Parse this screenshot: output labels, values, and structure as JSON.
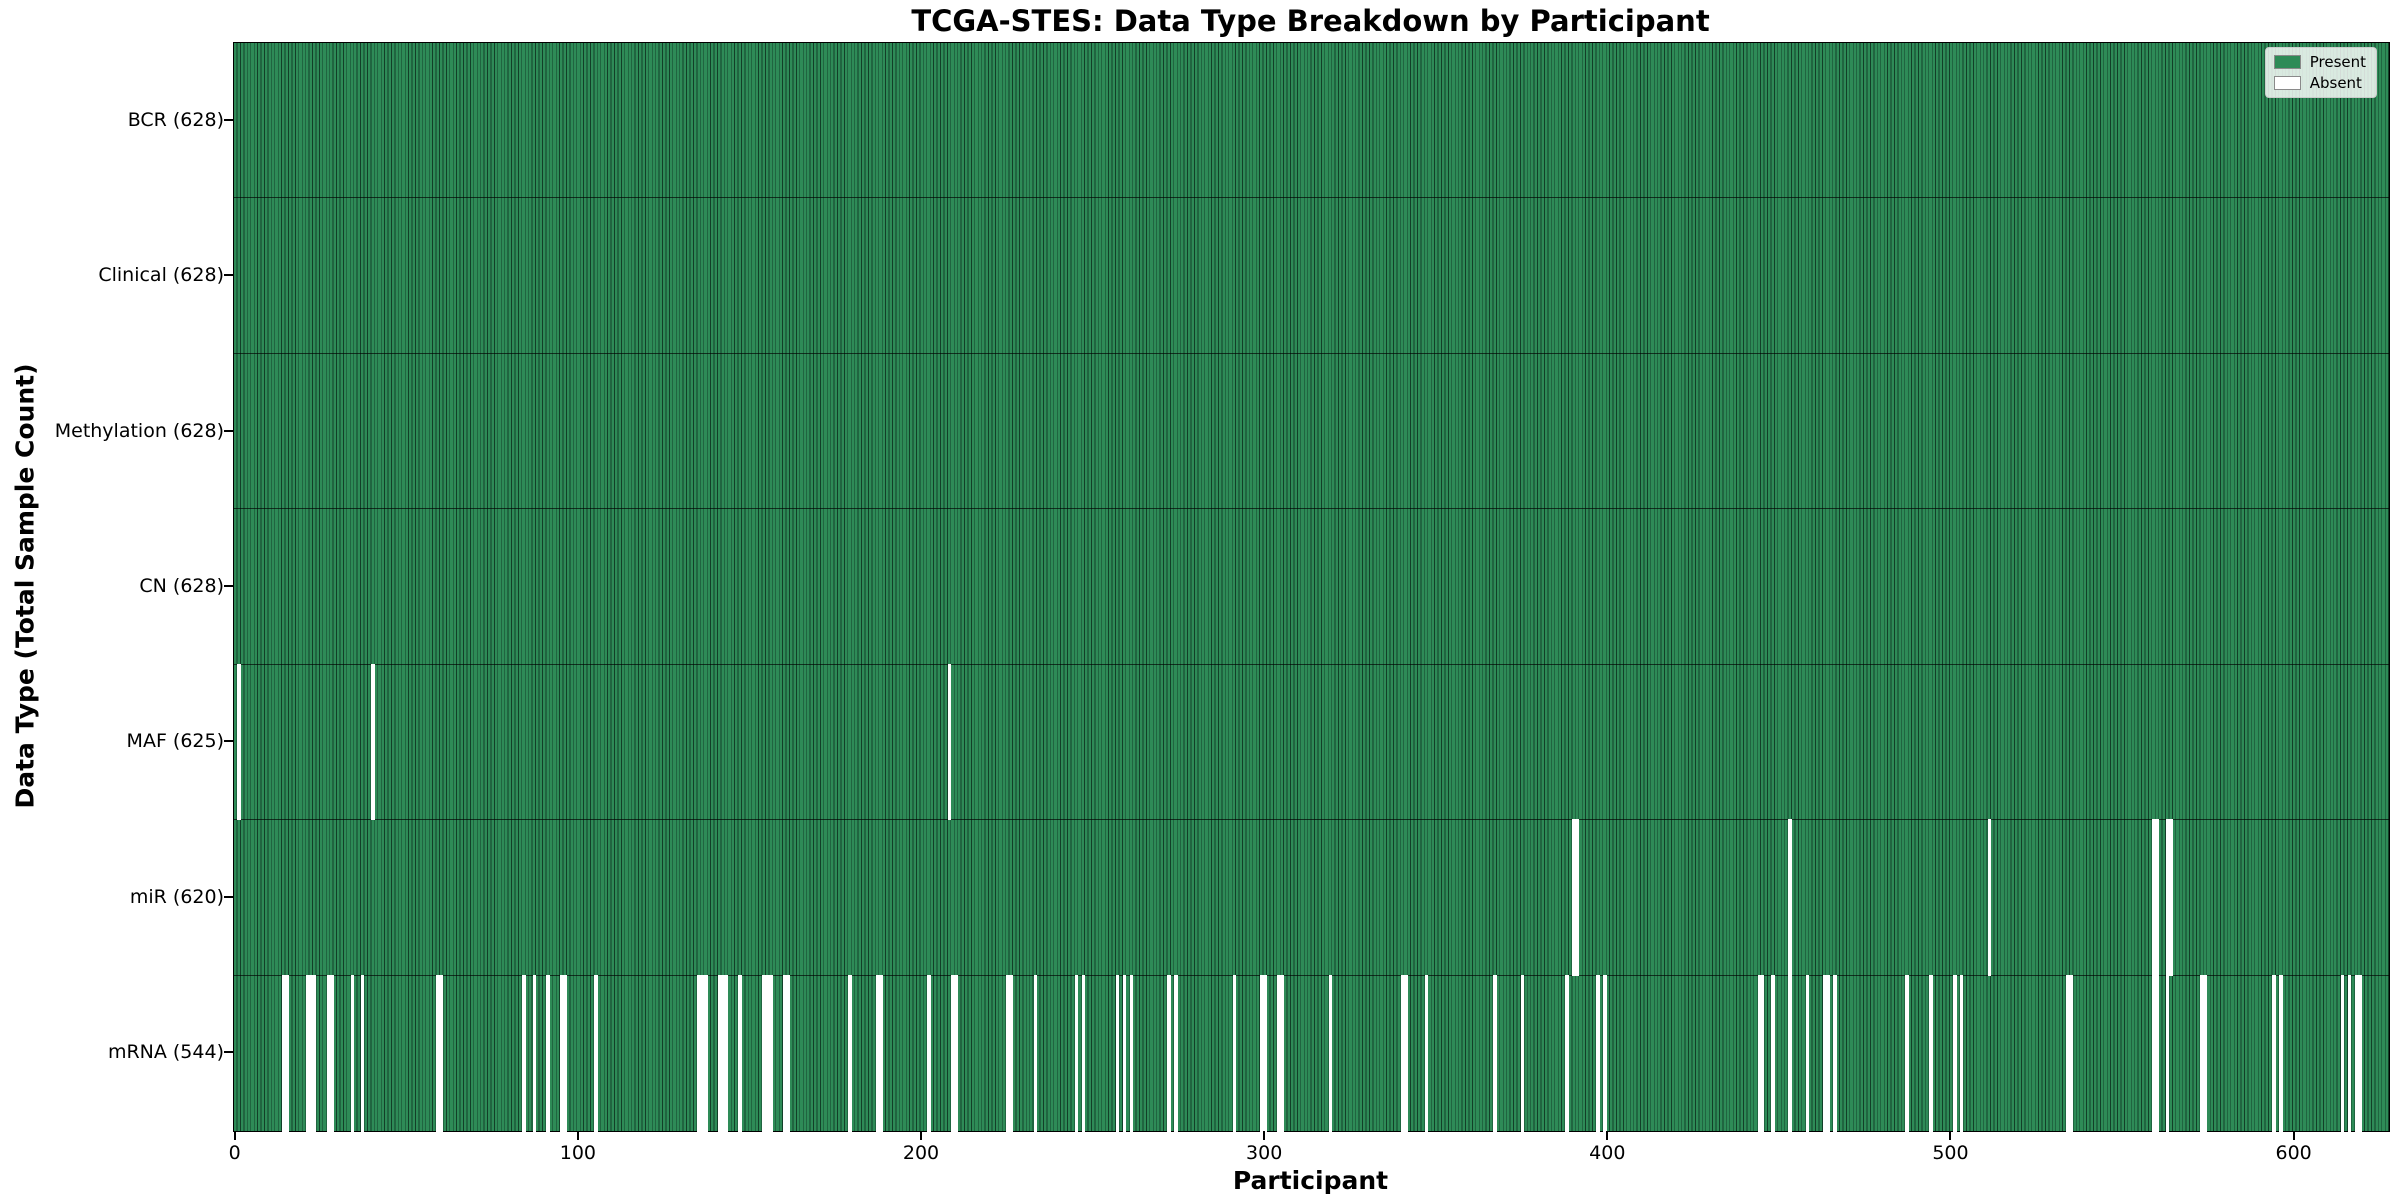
{
  "figure": {
    "title": "TCGA-STES: Data Type Breakdown by Participant",
    "xlabel": "Participant",
    "ylabel": "Data Type (Total Sample Count)"
  },
  "legend": {
    "items": [
      {
        "label": "Present",
        "color": "#2e8b57"
      },
      {
        "label": "Absent",
        "color": "#ffffff"
      }
    ]
  },
  "chart_data": {
    "type": "heatmap",
    "title": "TCGA-STES: Data Type Breakdown by Participant",
    "xlabel": "Participant",
    "ylabel": "Data Type (Total Sample Count)",
    "x_range": [
      0,
      628
    ],
    "x_ticks": [
      0,
      100,
      200,
      300,
      400,
      500,
      600
    ],
    "total_participants": 628,
    "grid": false,
    "legend_position": "upper right",
    "colors": {
      "present_fill": "#2e8b57",
      "present_edge": "#123f28",
      "absent_fill": "#ffffff"
    },
    "rows": [
      {
        "label": "BCR (628)",
        "data_type": "BCR",
        "present_count": 628,
        "absent_count": 0,
        "absent_participants": []
      },
      {
        "label": "Clinical (628)",
        "data_type": "Clinical",
        "present_count": 628,
        "absent_count": 0,
        "absent_participants": []
      },
      {
        "label": "Methylation (628)",
        "data_type": "Methylation",
        "present_count": 628,
        "absent_count": 0,
        "absent_participants": []
      },
      {
        "label": "CN (628)",
        "data_type": "CN",
        "present_count": 628,
        "absent_count": 0,
        "absent_participants": []
      },
      {
        "label": "MAF (625)",
        "data_type": "MAF",
        "present_count": 625,
        "absent_count": 3,
        "absent_participants": [
          1,
          40,
          208
        ]
      },
      {
        "label": "miR (620)",
        "data_type": "miR",
        "present_count": 620,
        "absent_count": 8,
        "absent_participants": [
          390,
          391,
          453,
          511,
          559,
          560,
          563,
          564
        ]
      },
      {
        "label": "mRNA (544)",
        "data_type": "mRNA",
        "present_count": 544,
        "absent_count": 84,
        "absent_participants": [
          14,
          15,
          21,
          22,
          23,
          27,
          28,
          34,
          37,
          59,
          60,
          84,
          87,
          91,
          95,
          96,
          105,
          135,
          136,
          137,
          141,
          142,
          143,
          147,
          154,
          155,
          156,
          160,
          161,
          179,
          187,
          188,
          202,
          209,
          210,
          225,
          226,
          233,
          245,
          247,
          257,
          259,
          261,
          272,
          274,
          291,
          299,
          300,
          304,
          305,
          319,
          340,
          341,
          347,
          367,
          375,
          388,
          397,
          399,
          444,
          445,
          448,
          453,
          458,
          463,
          464,
          466,
          487,
          494,
          501,
          503,
          534,
          535,
          559,
          560,
          563,
          573,
          574,
          594,
          596,
          614,
          616,
          618,
          619
        ]
      }
    ]
  }
}
